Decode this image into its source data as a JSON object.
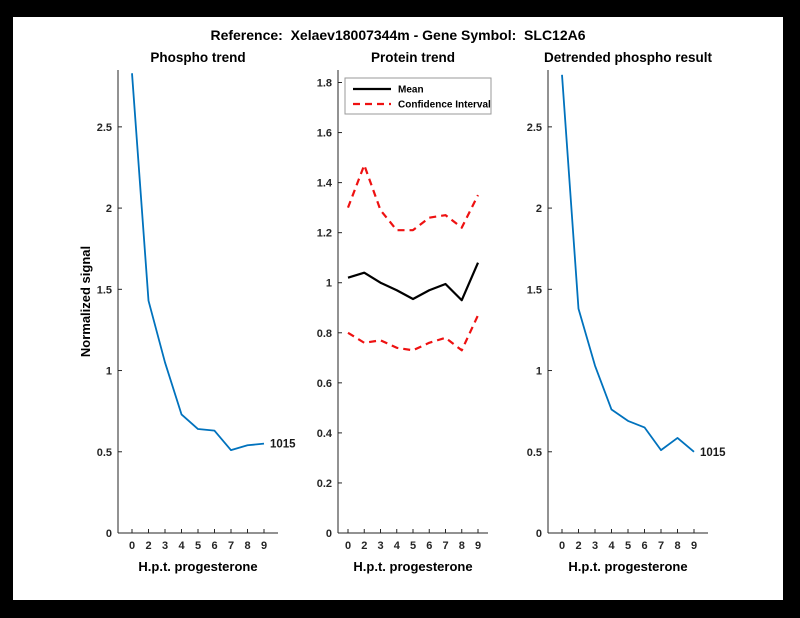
{
  "window": {
    "background_color": "#000000",
    "canvas_color": "#ffffff"
  },
  "figure": {
    "title": "Reference:  Xelaev18007344m - Gene Symbol:  SLC12A6"
  },
  "colors": {
    "phospho_line": "#0072bd",
    "mean_line": "#000000",
    "confidence_line": "#ee1111",
    "axis_ink": "#262626",
    "legend_border": "#9a9a9a"
  },
  "chart_data": [
    {
      "type": "line",
      "title": "Phospho trend",
      "xlabel": "H.p.t. progesterone",
      "ylabel": "Normalized signal",
      "x_tick_labels": [
        "0",
        "2",
        "3",
        "4",
        "5",
        "6",
        "7",
        "8",
        "9"
      ],
      "y_tick_values": [
        0,
        0.5,
        1,
        1.5,
        2,
        2.5
      ],
      "y_tick_labels": [
        "0",
        "0.5",
        "1",
        "1.5",
        "2",
        "2.5"
      ],
      "ylim": [
        0,
        2.85
      ],
      "grid": false,
      "legend": null,
      "end_label": "1015",
      "series": [
        {
          "name": "phospho-signal",
          "color": "#0072bd",
          "style": "solid",
          "width": 1.8,
          "values": [
            2.83,
            1.43,
            1.05,
            0.73,
            0.64,
            0.63,
            0.51,
            0.54,
            0.55
          ]
        }
      ]
    },
    {
      "type": "line",
      "title": "Protein trend",
      "xlabel": "H.p.t. progesterone",
      "ylabel": "",
      "x_tick_labels": [
        "0",
        "2",
        "3",
        "4",
        "5",
        "6",
        "7",
        "8",
        "9"
      ],
      "y_tick_values": [
        0,
        0.2,
        0.4,
        0.6,
        0.8,
        1,
        1.2,
        1.4,
        1.6,
        1.8
      ],
      "y_tick_labels": [
        "0",
        "0.2",
        "0.4",
        "0.6",
        "0.8",
        "1",
        "1.2",
        "1.4",
        "1.6",
        "1.8"
      ],
      "ylim": [
        0,
        1.85
      ],
      "grid": false,
      "end_label": null,
      "legend": {
        "position": "northwest",
        "entries": [
          {
            "label": "Mean",
            "color": "#000000",
            "style": "solid"
          },
          {
            "label": "Confidence Interval",
            "color": "#ee1111",
            "style": "dashed"
          }
        ]
      },
      "series": [
        {
          "name": "mean",
          "color": "#000000",
          "style": "solid",
          "width": 2.2,
          "values": [
            1.02,
            1.04,
            1.0,
            0.97,
            0.935,
            0.97,
            0.995,
            0.93,
            1.08
          ]
        },
        {
          "name": "confidence-upper",
          "color": "#ee1111",
          "style": "dashed",
          "width": 2.2,
          "values": [
            1.3,
            1.47,
            1.29,
            1.21,
            1.21,
            1.26,
            1.27,
            1.22,
            1.35
          ]
        },
        {
          "name": "confidence-lower",
          "color": "#ee1111",
          "style": "dashed",
          "width": 2.2,
          "values": [
            0.8,
            0.76,
            0.77,
            0.74,
            0.73,
            0.76,
            0.78,
            0.73,
            0.87
          ]
        }
      ]
    },
    {
      "type": "line",
      "title": "Detrended phospho result",
      "xlabel": "H.p.t. progesterone",
      "ylabel": "",
      "x_tick_labels": [
        "0",
        "2",
        "3",
        "4",
        "5",
        "6",
        "7",
        "8",
        "9"
      ],
      "y_tick_values": [
        0,
        0.5,
        1,
        1.5,
        2,
        2.5
      ],
      "y_tick_labels": [
        "0",
        "0.5",
        "1",
        "1.5",
        "2",
        "2.5"
      ],
      "ylim": [
        0,
        2.85
      ],
      "grid": false,
      "legend": null,
      "end_label": "1015",
      "series": [
        {
          "name": "detrended-phospho-signal",
          "color": "#0072bd",
          "style": "solid",
          "width": 1.8,
          "values": [
            2.82,
            1.38,
            1.03,
            0.76,
            0.69,
            0.65,
            0.51,
            0.585,
            0.5
          ]
        }
      ]
    }
  ]
}
